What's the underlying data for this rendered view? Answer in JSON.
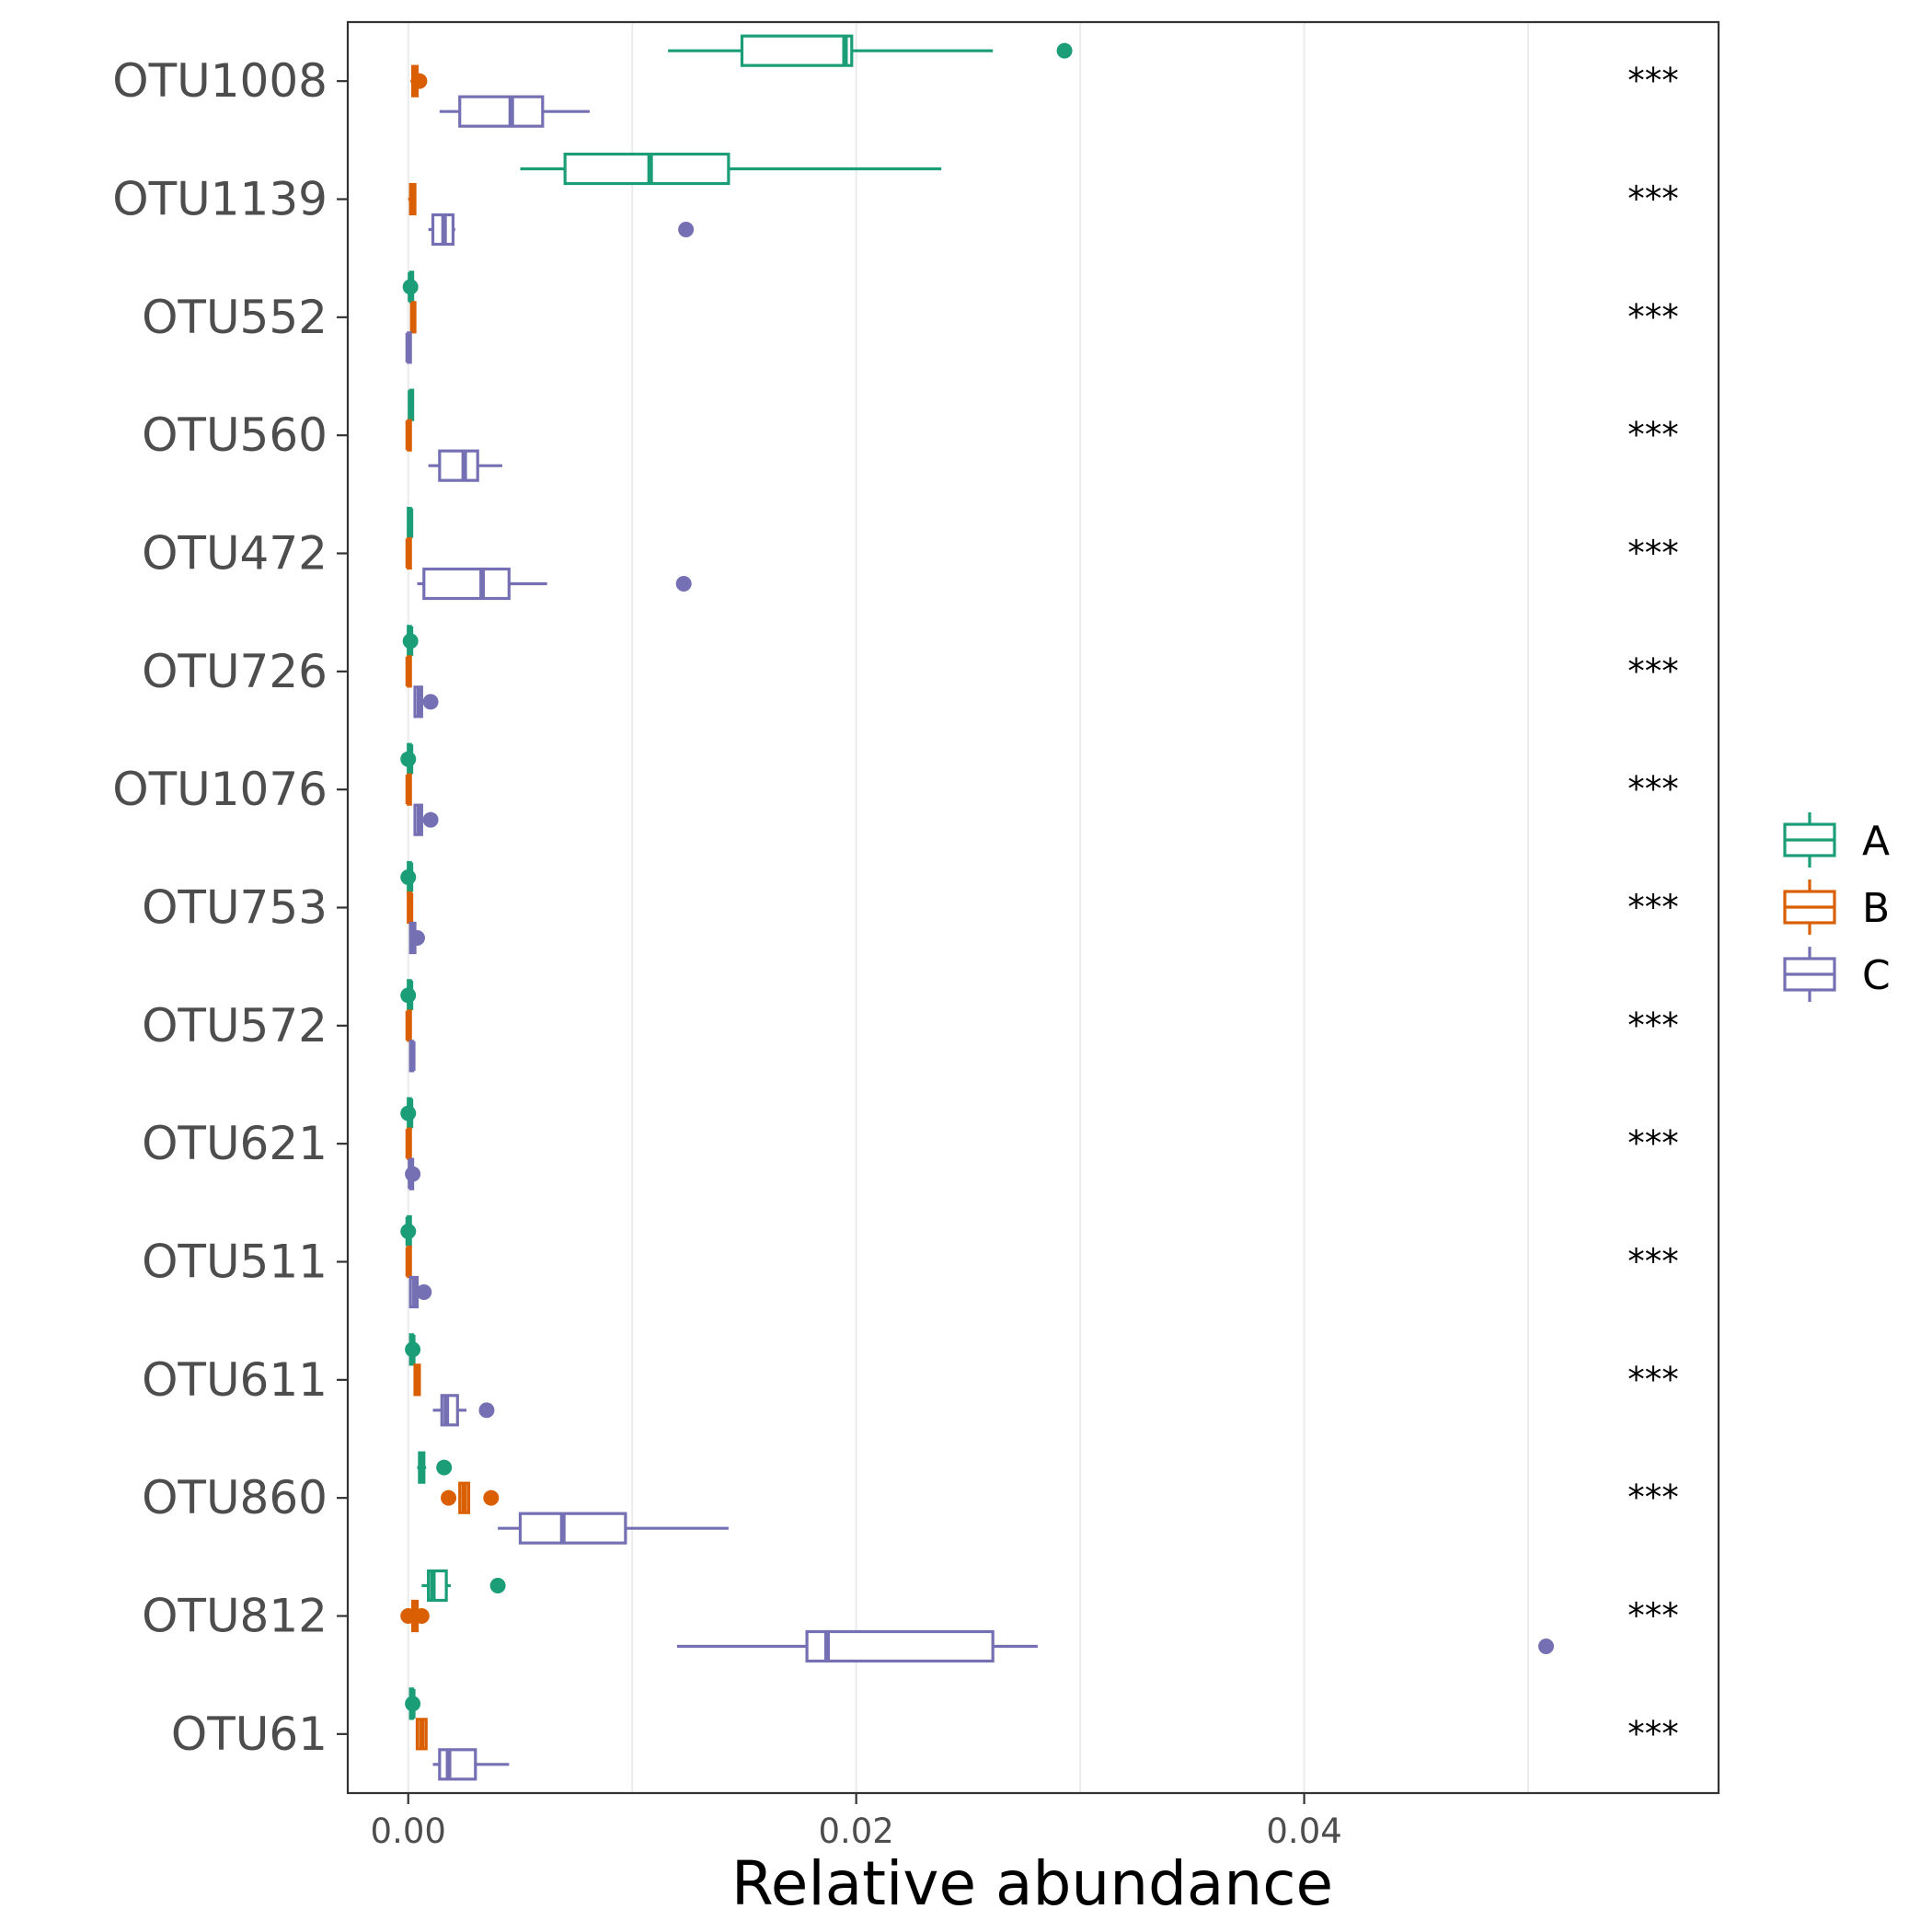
{
  "chart_data": {
    "type": "boxplot",
    "orientation": "horizontal",
    "xlabel": "Relative abundance",
    "ylabel": "",
    "xlim": [
      -0.0027,
      0.0585
    ],
    "x_ticks": [
      0.0,
      0.02,
      0.04
    ],
    "x_tick_labels": [
      "0.00",
      "0.02",
      "0.04"
    ],
    "grid": "vertical major and minor lines",
    "legend_position": "right",
    "groups": [
      {
        "name": "A",
        "color": "#1b9e77"
      },
      {
        "name": "B",
        "color": "#d95f02"
      },
      {
        "name": "C",
        "color": "#7570b3"
      }
    ],
    "categories": [
      "OTU1008",
      "OTU1139",
      "OTU552",
      "OTU560",
      "OTU472",
      "OTU726",
      "OTU1076",
      "OTU753",
      "OTU572",
      "OTU621",
      "OTU511",
      "OTU611",
      "OTU860",
      "OTU812",
      "OTU61"
    ],
    "significance": [
      "***",
      "***",
      "***",
      "***",
      "***",
      "***",
      "***",
      "***",
      "***",
      "***",
      "***",
      "***",
      "***",
      "***",
      "***"
    ],
    "boxes": [
      {
        "otu": "OTU1008",
        "A": {
          "min": 0.0116,
          "q1": 0.0149,
          "median": 0.0195,
          "q3": 0.0198,
          "max": 0.0261,
          "outliers": [
            0.0293
          ]
        },
        "B": {
          "min": 0.0001,
          "q1": 0.0002,
          "median": 0.0003,
          "q3": 0.0004,
          "max": 0.0005,
          "outliers": [
            0.0005
          ]
        },
        "C": {
          "min": 0.0014,
          "q1": 0.0023,
          "median": 0.0046,
          "q3": 0.006,
          "max": 0.0081,
          "outliers": []
        }
      },
      {
        "otu": "OTU1139",
        "A": {
          "min": 0.005,
          "q1": 0.007,
          "median": 0.0108,
          "q3": 0.0143,
          "max": 0.0238,
          "outliers": []
        },
        "B": {
          "min": 0.0,
          "q1": 0.0001,
          "median": 0.0002,
          "q3": 0.0003,
          "max": 0.0003,
          "outliers": []
        },
        "C": {
          "min": 0.0009,
          "q1": 0.0011,
          "median": 0.0016,
          "q3": 0.002,
          "max": 0.0021,
          "outliers": [
            0.0124
          ]
        }
      },
      {
        "otu": "OTU552",
        "A": {
          "min": 0.0,
          "q1": 0.0001,
          "median": 0.0001,
          "q3": 0.0002,
          "max": 0.0002,
          "outliers": [
            0.0001
          ]
        },
        "B": {
          "min": 0.0001,
          "q1": 0.0002,
          "median": 0.0002,
          "q3": 0.0003,
          "max": 0.0003,
          "outliers": []
        },
        "C": {
          "min": 0.0,
          "q1": 0.0,
          "median": 0.0,
          "q3": 0.0001,
          "max": 0.0001,
          "outliers": []
        }
      },
      {
        "otu": "OTU560",
        "A": {
          "min": 0.0001,
          "q1": 0.0001,
          "median": 0.0001,
          "q3": 0.0002,
          "max": 0.0002,
          "outliers": []
        },
        "B": {
          "min": 0.0,
          "q1": 0.0,
          "median": 0.0,
          "q3": 0.0001,
          "max": 0.0001,
          "outliers": []
        },
        "C": {
          "min": 0.0009,
          "q1": 0.0014,
          "median": 0.0025,
          "q3": 0.0031,
          "max": 0.0042,
          "outliers": []
        }
      },
      {
        "otu": "OTU472",
        "A": {
          "min": 0.0,
          "q1": 0.0,
          "median": 0.0001,
          "q3": 0.0001,
          "max": 0.0001,
          "outliers": []
        },
        "B": {
          "min": 0.0,
          "q1": 0.0,
          "median": 0.0,
          "q3": 0.0001,
          "max": 0.0001,
          "outliers": []
        },
        "C": {
          "min": 0.0004,
          "q1": 0.0007,
          "median": 0.0033,
          "q3": 0.0045,
          "max": 0.0062,
          "outliers": [
            0.0123
          ]
        }
      },
      {
        "otu": "OTU726",
        "A": {
          "min": 0.0,
          "q1": 0.0,
          "median": 0.0001,
          "q3": 0.0001,
          "max": 0.0002,
          "outliers": [
            0.0001
          ]
        },
        "B": {
          "min": 0.0,
          "q1": 0.0,
          "median": 0.0,
          "q3": 0.0001,
          "max": 0.0001,
          "outliers": []
        },
        "C": {
          "min": 0.0003,
          "q1": 0.0003,
          "median": 0.0005,
          "q3": 0.0006,
          "max": 0.0006,
          "outliers": [
            0.001
          ]
        }
      },
      {
        "otu": "OTU1076",
        "A": {
          "min": 0.0,
          "q1": 0.0,
          "median": 0.0001,
          "q3": 0.0001,
          "max": 0.0002,
          "outliers": [
            0.0
          ]
        },
        "B": {
          "min": 0.0,
          "q1": 0.0,
          "median": 0.0,
          "q3": 0.0001,
          "max": 0.0001,
          "outliers": []
        },
        "C": {
          "min": 0.0003,
          "q1": 0.0003,
          "median": 0.0005,
          "q3": 0.0006,
          "max": 0.0007,
          "outliers": [
            0.001
          ]
        }
      },
      {
        "otu": "OTU753",
        "A": {
          "min": 0.0,
          "q1": 0.0,
          "median": 0.0001,
          "q3": 0.0001,
          "max": 0.0002,
          "outliers": [
            0.0
          ]
        },
        "B": {
          "min": 0.0,
          "q1": 0.0,
          "median": 0.0001,
          "q3": 0.0001,
          "max": 0.0001,
          "outliers": []
        },
        "C": {
          "min": 0.0001,
          "q1": 0.0001,
          "median": 0.0002,
          "q3": 0.0003,
          "max": 0.0003,
          "outliers": [
            0.0004
          ]
        }
      },
      {
        "otu": "OTU572",
        "A": {
          "min": 0.0,
          "q1": 0.0,
          "median": 0.0001,
          "q3": 0.0001,
          "max": 0.0002,
          "outliers": [
            0.0
          ]
        },
        "B": {
          "min": 0.0,
          "q1": 0.0,
          "median": 0.0,
          "q3": 0.0001,
          "max": 0.0001,
          "outliers": []
        },
        "C": {
          "min": 0.0001,
          "q1": 0.0001,
          "median": 0.0002,
          "q3": 0.0002,
          "max": 0.0002,
          "outliers": []
        }
      },
      {
        "otu": "OTU621",
        "A": {
          "min": 0.0,
          "q1": 0.0,
          "median": 0.0001,
          "q3": 0.0001,
          "max": 0.0001,
          "outliers": [
            0.0
          ]
        },
        "B": {
          "min": 0.0,
          "q1": 0.0,
          "median": 0.0,
          "q3": 0.0001,
          "max": 0.0001,
          "outliers": []
        },
        "C": {
          "min": 0.0001,
          "q1": 0.0001,
          "median": 0.0001,
          "q3": 0.0002,
          "max": 0.0002,
          "outliers": [
            0.0002
          ]
        }
      },
      {
        "otu": "OTU511",
        "A": {
          "min": 0.0,
          "q1": 0.0,
          "median": 0.0,
          "q3": 0.0001,
          "max": 0.0001,
          "outliers": [
            0.0
          ]
        },
        "B": {
          "min": 0.0,
          "q1": 0.0,
          "median": 0.0,
          "q3": 0.0001,
          "max": 0.0001,
          "outliers": []
        },
        "C": {
          "min": 0.0001,
          "q1": 0.0001,
          "median": 0.0003,
          "q3": 0.0004,
          "max": 0.0004,
          "outliers": [
            0.0007
          ]
        }
      },
      {
        "otu": "OTU611",
        "A": {
          "min": 0.0001,
          "q1": 0.0001,
          "median": 0.0002,
          "q3": 0.0002,
          "max": 0.0003,
          "outliers": [
            0.0002
          ]
        },
        "B": {
          "min": 0.0003,
          "q1": 0.0003,
          "median": 0.0004,
          "q3": 0.0005,
          "max": 0.0005,
          "outliers": []
        },
        "C": {
          "min": 0.0011,
          "q1": 0.0015,
          "median": 0.0017,
          "q3": 0.0022,
          "max": 0.0026,
          "outliers": [
            0.0035
          ]
        }
      },
      {
        "otu": "OTU860",
        "A": {
          "min": 0.0004,
          "q1": 0.0005,
          "median": 0.0006,
          "q3": 0.0007,
          "max": 0.0008,
          "outliers": [
            0.0016
          ]
        },
        "B": {
          "min": 0.0023,
          "q1": 0.0023,
          "median": 0.0025,
          "q3": 0.0027,
          "max": 0.0027,
          "outliers": [
            0.0018,
            0.0037
          ]
        },
        "C": {
          "min": 0.004,
          "q1": 0.005,
          "median": 0.0069,
          "q3": 0.0097,
          "max": 0.0143,
          "outliers": []
        }
      },
      {
        "otu": "OTU812",
        "A": {
          "min": 0.0006,
          "q1": 0.0009,
          "median": 0.0011,
          "q3": 0.0017,
          "max": 0.0019,
          "outliers": [
            0.004
          ]
        },
        "B": {
          "min": 0.0001,
          "q1": 0.0002,
          "median": 0.0003,
          "q3": 0.0004,
          "max": 0.0004,
          "outliers": [
            0.0,
            0.0006
          ]
        },
        "C": {
          "min": 0.012,
          "q1": 0.0178,
          "median": 0.0187,
          "q3": 0.0261,
          "max": 0.0281,
          "outliers": [
            0.0508
          ]
        }
      },
      {
        "otu": "OTU61",
        "A": {
          "min": 0.0001,
          "q1": 0.0001,
          "median": 0.0002,
          "q3": 0.0002,
          "max": 0.0003,
          "outliers": [
            0.0002
          ]
        },
        "B": {
          "min": 0.0004,
          "q1": 0.0004,
          "median": 0.0006,
          "q3": 0.0008,
          "max": 0.0008,
          "outliers": []
        },
        "C": {
          "min": 0.0011,
          "q1": 0.0014,
          "median": 0.0018,
          "q3": 0.003,
          "max": 0.0045,
          "outliers": []
        }
      }
    ]
  }
}
